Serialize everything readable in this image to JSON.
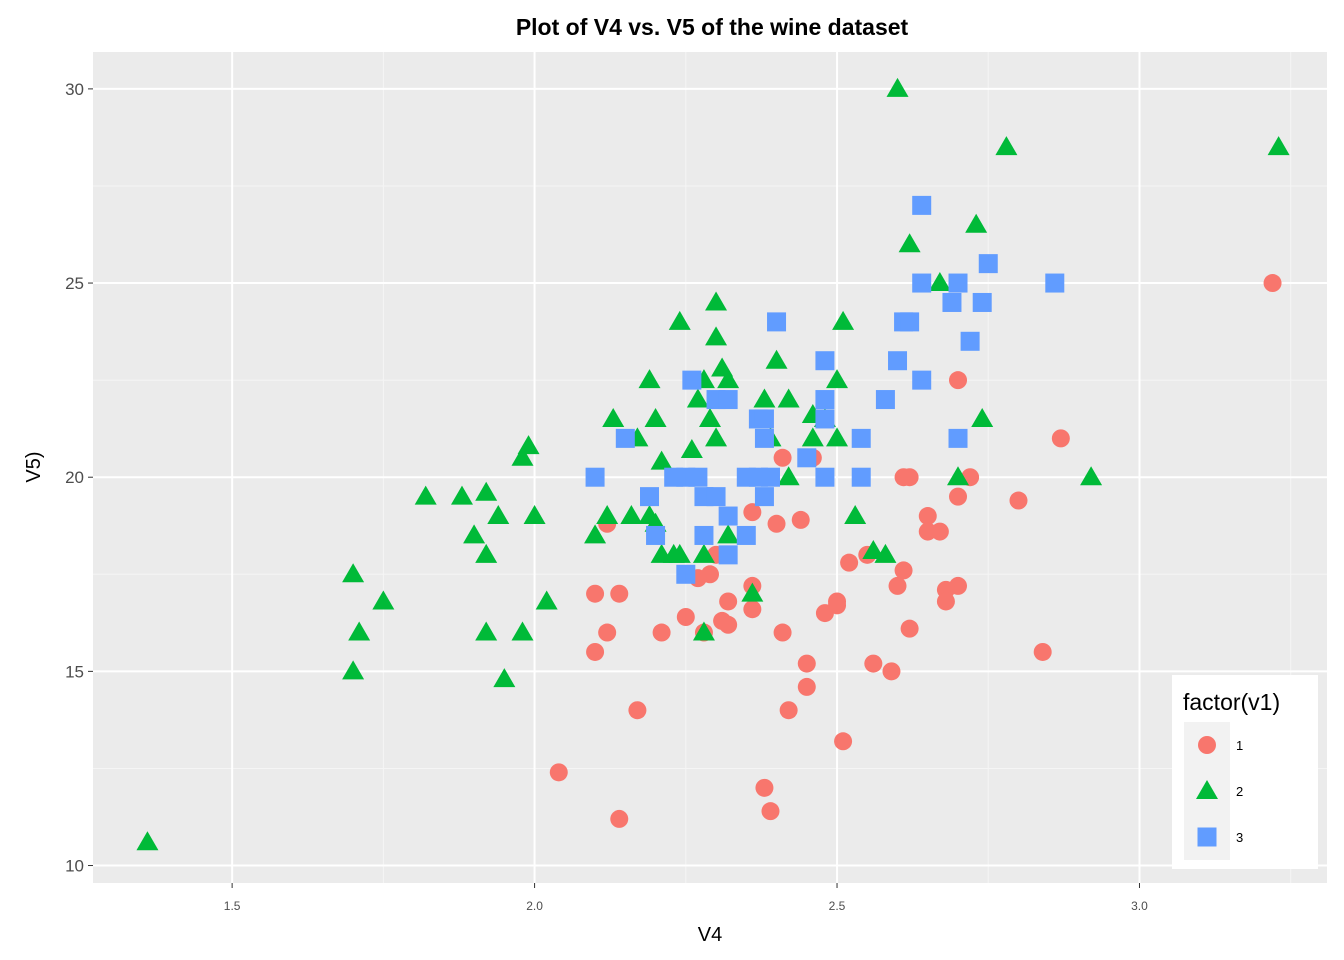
{
  "chart_data": {
    "type": "scatter",
    "title": "Plot of V4 vs. V5 of the wine dataset",
    "xlabel": "V4",
    "ylabel": "V5)",
    "xlim": [
      1.27,
      3.31
    ],
    "ylim": [
      9.55,
      30.95
    ],
    "x_ticks": [
      1.5,
      2.0,
      2.5,
      3.0
    ],
    "x_tick_labels": [
      "1.5",
      "2.0",
      "2.5",
      "3.0"
    ],
    "y_ticks": [
      10,
      15,
      20,
      25,
      30
    ],
    "y_tick_labels": [
      "10",
      "15",
      "20",
      "25",
      "30"
    ],
    "grid": true,
    "legend": {
      "title": "factor(v1)",
      "position": "bottom-right"
    },
    "series": [
      {
        "name": "1",
        "shape": "circle",
        "color": "#F8766D",
        "points": [
          [
            3.22,
            25.0
          ],
          [
            2.87,
            21.0
          ],
          [
            2.8,
            19.4
          ],
          [
            2.84,
            15.5
          ],
          [
            2.7,
            22.5
          ],
          [
            2.72,
            20.0
          ],
          [
            2.7,
            19.5
          ],
          [
            2.65,
            19.0
          ],
          [
            2.65,
            18.6
          ],
          [
            2.67,
            18.6
          ],
          [
            2.7,
            17.2
          ],
          [
            2.68,
            17.1
          ],
          [
            2.68,
            16.8
          ],
          [
            2.61,
            20.0
          ],
          [
            2.62,
            20.0
          ],
          [
            2.61,
            17.6
          ],
          [
            2.6,
            17.2
          ],
          [
            2.62,
            16.1
          ],
          [
            2.59,
            15.0
          ],
          [
            2.56,
            15.2
          ],
          [
            2.55,
            18.0
          ],
          [
            2.52,
            17.8
          ],
          [
            2.5,
            16.8
          ],
          [
            2.5,
            16.7
          ],
          [
            2.48,
            16.5
          ],
          [
            2.51,
            13.2
          ],
          [
            2.46,
            20.5
          ],
          [
            2.41,
            20.5
          ],
          [
            2.44,
            18.9
          ],
          [
            2.4,
            18.8
          ],
          [
            2.45,
            15.2
          ],
          [
            2.45,
            14.6
          ],
          [
            2.42,
            14.0
          ],
          [
            2.41,
            16.0
          ],
          [
            2.38,
            12.0
          ],
          [
            2.39,
            11.4
          ],
          [
            2.36,
            19.1
          ],
          [
            2.36,
            17.2
          ],
          [
            2.36,
            16.6
          ],
          [
            2.32,
            16.8
          ],
          [
            2.31,
            16.3
          ],
          [
            2.32,
            16.2
          ],
          [
            2.3,
            18.0
          ],
          [
            2.29,
            17.5
          ],
          [
            2.27,
            17.4
          ],
          [
            2.28,
            16.0
          ],
          [
            2.25,
            16.4
          ],
          [
            2.21,
            16.0
          ],
          [
            2.17,
            14.0
          ],
          [
            2.14,
            17.0
          ],
          [
            2.14,
            11.2
          ],
          [
            2.12,
            18.8
          ],
          [
            2.1,
            17.0
          ],
          [
            2.12,
            16.0
          ],
          [
            2.1,
            15.5
          ],
          [
            2.04,
            12.4
          ]
        ]
      },
      {
        "name": "2",
        "shape": "triangle",
        "color": "#00BA38",
        "points": [
          [
            1.36,
            10.6
          ],
          [
            1.7,
            17.5
          ],
          [
            1.7,
            15.0
          ],
          [
            1.71,
            16.0
          ],
          [
            1.75,
            16.8
          ],
          [
            1.82,
            19.5
          ],
          [
            1.88,
            19.5
          ],
          [
            1.9,
            18.5
          ],
          [
            1.92,
            19.6
          ],
          [
            1.92,
            18.0
          ],
          [
            1.92,
            16.0
          ],
          [
            1.94,
            19.0
          ],
          [
            1.95,
            14.8
          ],
          [
            1.98,
            20.5
          ],
          [
            1.99,
            20.8
          ],
          [
            2.0,
            19.0
          ],
          [
            1.98,
            16.0
          ],
          [
            2.02,
            16.8
          ],
          [
            2.1,
            18.5
          ],
          [
            2.12,
            19.0
          ],
          [
            2.13,
            21.5
          ],
          [
            2.16,
            19.0
          ],
          [
            2.17,
            21.0
          ],
          [
            2.19,
            22.5
          ],
          [
            2.2,
            21.5
          ],
          [
            2.19,
            19.0
          ],
          [
            2.2,
            18.8
          ],
          [
            2.21,
            20.4
          ],
          [
            2.21,
            18.0
          ],
          [
            2.23,
            18.0
          ],
          [
            2.24,
            18.0
          ],
          [
            2.24,
            24.0
          ],
          [
            2.26,
            20.7
          ],
          [
            2.27,
            22.0
          ],
          [
            2.28,
            22.5
          ],
          [
            2.28,
            18.0
          ],
          [
            2.28,
            16.0
          ],
          [
            2.29,
            21.5
          ],
          [
            2.3,
            24.5
          ],
          [
            2.3,
            23.6
          ],
          [
            2.3,
            21.0
          ],
          [
            2.31,
            22.8
          ],
          [
            2.32,
            22.5
          ],
          [
            2.32,
            18.5
          ],
          [
            2.36,
            17.0
          ],
          [
            2.38,
            22.0
          ],
          [
            2.39,
            21.0
          ],
          [
            2.4,
            23.0
          ],
          [
            2.42,
            22.0
          ],
          [
            2.42,
            20.0
          ],
          [
            2.46,
            21.6
          ],
          [
            2.46,
            21.0
          ],
          [
            2.48,
            21.5
          ],
          [
            2.5,
            22.5
          ],
          [
            2.5,
            21.0
          ],
          [
            2.51,
            24.0
          ],
          [
            2.53,
            19.0
          ],
          [
            2.56,
            18.1
          ],
          [
            2.58,
            18.0
          ],
          [
            2.6,
            30.0
          ],
          [
            2.62,
            26.0
          ],
          [
            2.67,
            25.0
          ],
          [
            2.7,
            20.0
          ],
          [
            2.73,
            26.5
          ],
          [
            2.74,
            21.5
          ],
          [
            2.78,
            28.5
          ],
          [
            2.92,
            20.0
          ],
          [
            3.23,
            28.5
          ]
        ]
      },
      {
        "name": "3",
        "shape": "square",
        "color": "#619CFF",
        "points": [
          [
            2.1,
            20.0
          ],
          [
            2.15,
            21.0
          ],
          [
            2.19,
            19.5
          ],
          [
            2.2,
            18.5
          ],
          [
            2.23,
            20.0
          ],
          [
            2.25,
            20.0
          ],
          [
            2.26,
            22.5
          ],
          [
            2.25,
            17.5
          ],
          [
            2.27,
            20.0
          ],
          [
            2.28,
            19.5
          ],
          [
            2.28,
            18.5
          ],
          [
            2.3,
            19.5
          ],
          [
            2.3,
            22.0
          ],
          [
            2.32,
            22.0
          ],
          [
            2.32,
            19.0
          ],
          [
            2.32,
            18.0
          ],
          [
            2.35,
            18.5
          ],
          [
            2.35,
            20.0
          ],
          [
            2.37,
            21.5
          ],
          [
            2.37,
            20.0
          ],
          [
            2.38,
            21.5
          ],
          [
            2.38,
            21.0
          ],
          [
            2.38,
            19.5
          ],
          [
            2.39,
            20.0
          ],
          [
            2.4,
            24.0
          ],
          [
            2.45,
            20.5
          ],
          [
            2.48,
            23.0
          ],
          [
            2.48,
            22.0
          ],
          [
            2.48,
            21.5
          ],
          [
            2.48,
            20.0
          ],
          [
            2.54,
            21.0
          ],
          [
            2.54,
            20.0
          ],
          [
            2.58,
            22.0
          ],
          [
            2.6,
            23.0
          ],
          [
            2.61,
            24.0
          ],
          [
            2.62,
            24.0
          ],
          [
            2.64,
            27.0
          ],
          [
            2.64,
            25.0
          ],
          [
            2.64,
            22.5
          ],
          [
            2.69,
            24.5
          ],
          [
            2.7,
            25.0
          ],
          [
            2.7,
            21.0
          ],
          [
            2.72,
            23.5
          ],
          [
            2.74,
            24.5
          ],
          [
            2.75,
            25.5
          ],
          [
            2.86,
            25.0
          ]
        ]
      }
    ]
  }
}
